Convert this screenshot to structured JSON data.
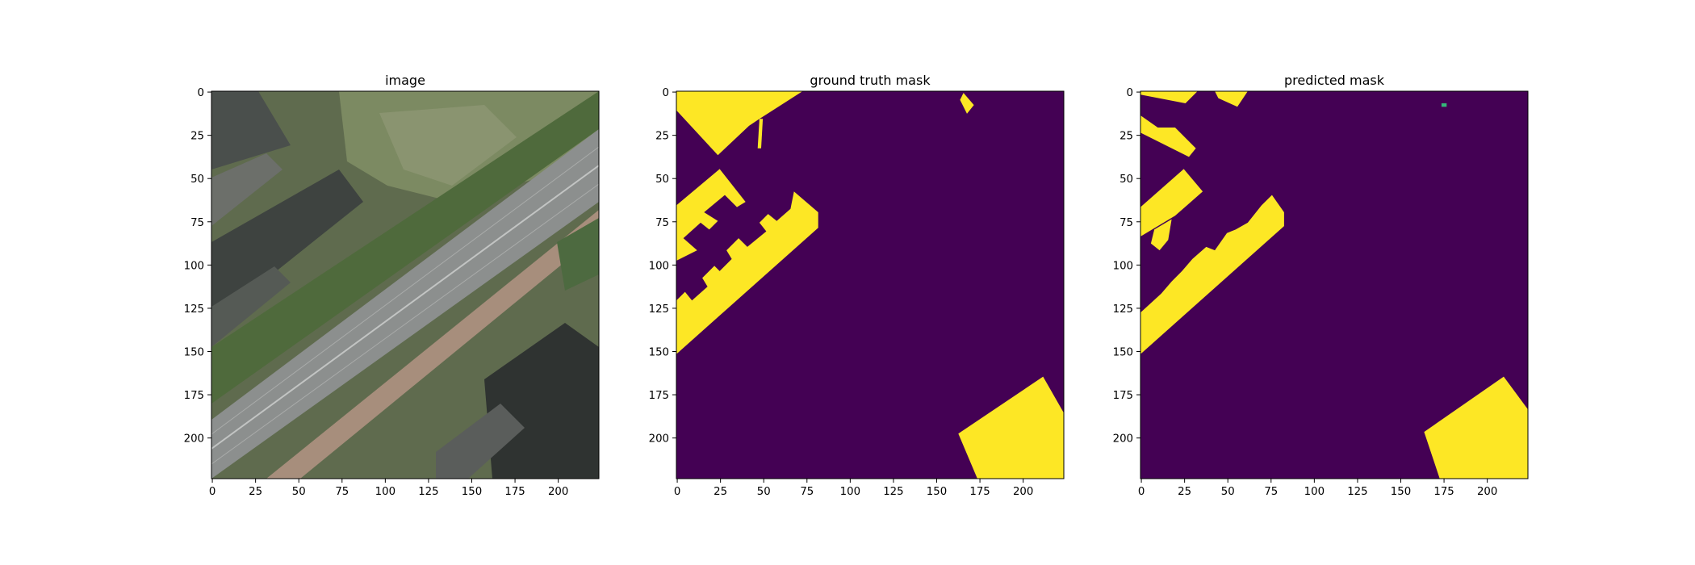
{
  "chart_data": [
    {
      "type": "image",
      "title": "image",
      "content": "aerial photograph",
      "xticks": [
        0,
        25,
        50,
        75,
        100,
        125,
        150,
        175,
        200
      ],
      "yticks": [
        0,
        25,
        50,
        75,
        100,
        125,
        150,
        175,
        200
      ],
      "xlim": [
        -0.5,
        223.5
      ],
      "ylim": [
        223.5,
        -0.5
      ],
      "image_size": [
        224,
        224
      ]
    },
    {
      "type": "heatmap",
      "title": "ground truth mask",
      "colormap": "viridis",
      "colors": {
        "background": "#440154",
        "building": "#fde725"
      },
      "xticks": [
        0,
        25,
        50,
        75,
        100,
        125,
        150,
        175,
        200
      ],
      "yticks": [
        0,
        25,
        50,
        75,
        100,
        125,
        150,
        175,
        200
      ],
      "xlim": [
        -0.5,
        223.5
      ],
      "ylim": [
        223.5,
        -0.5
      ],
      "image_size": [
        224,
        224
      ],
      "regions": [
        {
          "label": "building",
          "points": [
            [
              0,
              0
            ],
            [
              73,
              0
            ],
            [
              48,
              16
            ],
            [
              42,
              20
            ],
            [
              24,
              37
            ],
            [
              0,
              11
            ]
          ]
        },
        {
          "label": "building",
          "points": [
            [
              48,
              16
            ],
            [
              50,
              16
            ],
            [
              49,
              33
            ],
            [
              47,
              33
            ]
          ]
        },
        {
          "label": "building",
          "points": [
            [
              164,
              5
            ],
            [
              166,
              1
            ],
            [
              172,
              8
            ],
            [
              168,
              13
            ]
          ]
        },
        {
          "label": "building",
          "points": [
            [
              0,
              66
            ],
            [
              25,
              45
            ],
            [
              40,
              64
            ],
            [
              35,
              67
            ],
            [
              28,
              60
            ],
            [
              16,
              70
            ],
            [
              24,
              75
            ],
            [
              19,
              80
            ],
            [
              14,
              76
            ],
            [
              4,
              85
            ],
            [
              12,
              92
            ],
            [
              0,
              98
            ]
          ]
        },
        {
          "label": "building",
          "points": [
            [
              0,
              121
            ],
            [
              5,
              116
            ],
            [
              9,
              121
            ],
            [
              18,
              113
            ],
            [
              15,
              108
            ],
            [
              22,
              101
            ],
            [
              25,
              104
            ],
            [
              32,
              97
            ],
            [
              29,
              92
            ],
            [
              36,
              85
            ],
            [
              41,
              90
            ],
            [
              52,
              81
            ],
            [
              48,
              76
            ],
            [
              53,
              71
            ],
            [
              58,
              75
            ],
            [
              66,
              68
            ],
            [
              68,
              58
            ],
            [
              82,
              70
            ],
            [
              82,
              79
            ],
            [
              0,
              152
            ]
          ]
        },
        {
          "label": "building",
          "points": [
            [
              163,
              198
            ],
            [
              212,
              165
            ],
            [
              224,
              186
            ],
            [
              224,
              224
            ],
            [
              174,
              224
            ]
          ]
        }
      ]
    },
    {
      "type": "heatmap",
      "title": "predicted mask",
      "colormap": "viridis",
      "colors": {
        "background": "#440154",
        "building": "#fde725",
        "speck": "#35b779"
      },
      "xticks": [
        0,
        25,
        50,
        75,
        100,
        125,
        150,
        175,
        200
      ],
      "yticks": [
        0,
        25,
        50,
        75,
        100,
        125,
        150,
        175,
        200
      ],
      "xlim": [
        -0.5,
        223.5
      ],
      "ylim": [
        223.5,
        -0.5
      ],
      "image_size": [
        224,
        224
      ],
      "regions": [
        {
          "label": "building",
          "points": [
            [
              0,
              0
            ],
            [
              33,
              0
            ],
            [
              26,
              7
            ],
            [
              0,
              2
            ]
          ]
        },
        {
          "label": "building",
          "points": [
            [
              43,
              0
            ],
            [
              62,
              0
            ],
            [
              56,
              9
            ],
            [
              45,
              4
            ]
          ]
        },
        {
          "label": "building",
          "points": [
            [
              0,
              14
            ],
            [
              10,
              21
            ],
            [
              20,
              21
            ],
            [
              32,
              33
            ],
            [
              28,
              38
            ],
            [
              0,
              24
            ]
          ]
        },
        {
          "label": "building",
          "points": [
            [
              0,
              67
            ],
            [
              25,
              45
            ],
            [
              36,
              58
            ],
            [
              20,
              72
            ],
            [
              0,
              84
            ]
          ]
        },
        {
          "label": "building",
          "points": [
            [
              8,
              80
            ],
            [
              18,
              74
            ],
            [
              16,
              86
            ],
            [
              11,
              92
            ],
            [
              6,
              88
            ]
          ]
        },
        {
          "label": "building",
          "points": [
            [
              0,
              128
            ],
            [
              12,
              117
            ],
            [
              18,
              110
            ],
            [
              24,
              104
            ],
            [
              30,
              97
            ],
            [
              38,
              90
            ],
            [
              43,
              92
            ],
            [
              50,
              82
            ],
            [
              55,
              80
            ],
            [
              62,
              76
            ],
            [
              70,
              66
            ],
            [
              76,
              60
            ],
            [
              83,
              70
            ],
            [
              83,
              78
            ],
            [
              0,
              152
            ]
          ]
        },
        {
          "label": "speck",
          "points": [
            [
              174,
              7
            ],
            [
              177,
              7
            ],
            [
              177,
              9
            ],
            [
              174,
              9
            ]
          ]
        },
        {
          "label": "building",
          "points": [
            [
              164,
              197
            ],
            [
              210,
              165
            ],
            [
              224,
              184
            ],
            [
              224,
              224
            ],
            [
              173,
              224
            ]
          ]
        }
      ]
    }
  ]
}
